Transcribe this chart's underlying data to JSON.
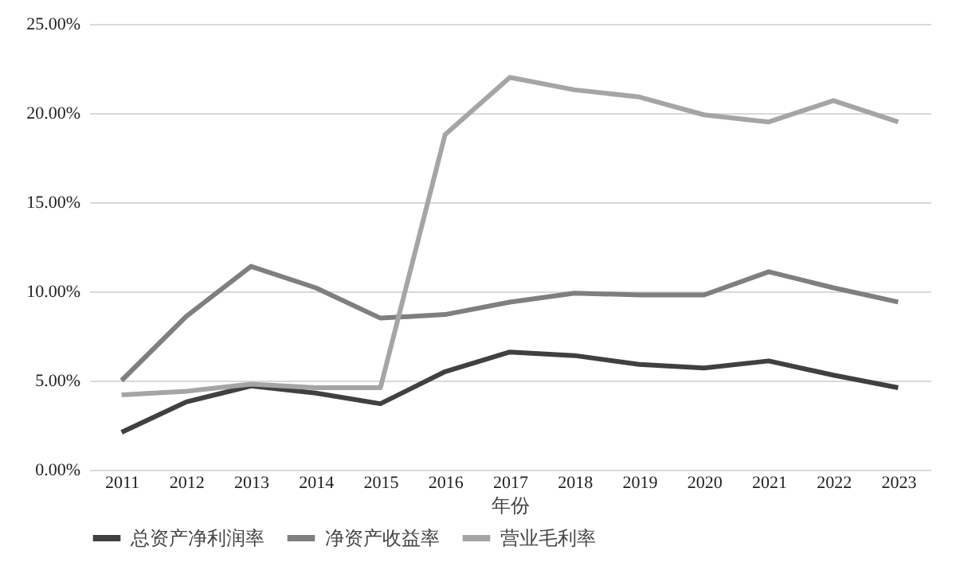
{
  "chart_data": {
    "type": "line",
    "xlabel": "年份",
    "categories": [
      "2011",
      "2012",
      "2013",
      "2014",
      "2015",
      "2016",
      "2017",
      "2018",
      "2019",
      "2020",
      "2021",
      "2022",
      "2023"
    ],
    "series": [
      {
        "name": "总资产净利润率",
        "color": "#404040",
        "values": [
          2.1,
          3.8,
          4.7,
          4.3,
          3.7,
          5.5,
          6.6,
          6.4,
          5.9,
          5.7,
          6.1,
          5.3,
          4.6
        ]
      },
      {
        "name": "净资产收益率",
        "color": "#7f7f7f",
        "values": [
          5.0,
          8.6,
          11.4,
          10.2,
          8.5,
          8.7,
          9.4,
          9.9,
          9.8,
          9.8,
          11.1,
          10.2,
          9.4
        ]
      },
      {
        "name": "营业毛利率",
        "color": "#a5a5a5",
        "values": [
          4.2,
          4.4,
          4.8,
          4.6,
          4.6,
          18.8,
          22.0,
          21.3,
          20.9,
          19.9,
          19.5,
          20.7,
          19.5
        ]
      }
    ],
    "ylim": [
      0,
      25
    ],
    "yticks": [
      {
        "value": 0,
        "label": "0.00%"
      },
      {
        "value": 5,
        "label": "5.00%"
      },
      {
        "value": 10,
        "label": "10.00%"
      },
      {
        "value": 15,
        "label": "15.00%"
      },
      {
        "value": 20,
        "label": "20.00%"
      },
      {
        "value": 25,
        "label": "25.00%"
      }
    ],
    "grid": "y",
    "legend": "bottom",
    "marker": "none",
    "line_style": "solid"
  }
}
